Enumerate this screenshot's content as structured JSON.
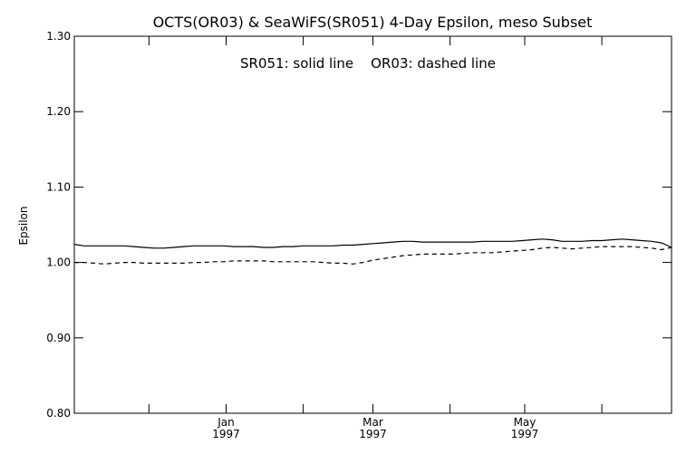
{
  "chart_data": {
    "type": "line",
    "title": "OCTS(OR03) & SeaWiFS(SR051) 4-Day Epsilon, meso Subset",
    "annotation": "SR051: solid line    OR03: dashed line",
    "xlabel": "",
    "ylabel": "Epsilon",
    "xlim": [
      "1996-11-01",
      "1997-06-29"
    ],
    "ylim": [
      0.8,
      1.3
    ],
    "y_ticks": [
      {
        "value": 0.8,
        "label": "0.80"
      },
      {
        "value": 0.9,
        "label": "0.90"
      },
      {
        "value": 1.0,
        "label": "1.00"
      },
      {
        "value": 1.1,
        "label": "1.10"
      },
      {
        "value": 1.2,
        "label": "1.20"
      },
      {
        "value": 1.3,
        "label": "1.30"
      }
    ],
    "x_ticks": [
      {
        "date": "1996-12-01",
        "label": ""
      },
      {
        "date": "1997-01-01",
        "label": "Jan",
        "year": "1997"
      },
      {
        "date": "1997-02-01",
        "label": ""
      },
      {
        "date": "1997-03-01",
        "label": "Mar",
        "year": "1997"
      },
      {
        "date": "1997-04-01",
        "label": ""
      },
      {
        "date": "1997-05-01",
        "label": "May",
        "year": "1997"
      },
      {
        "date": "1997-06-01",
        "label": ""
      }
    ],
    "grid": false,
    "legend": "none",
    "series": [
      {
        "name": "SR051",
        "style": "solid",
        "color": "#000000",
        "x": [
          "1996-11-01",
          "1996-11-05",
          "1996-11-09",
          "1996-11-13",
          "1996-11-17",
          "1996-11-21",
          "1996-11-25",
          "1996-11-29",
          "1996-12-03",
          "1996-12-07",
          "1996-12-11",
          "1996-12-15",
          "1996-12-19",
          "1996-12-23",
          "1996-12-27",
          "1996-12-31",
          "1997-01-04",
          "1997-01-08",
          "1997-01-12",
          "1997-01-16",
          "1997-01-20",
          "1997-01-24",
          "1997-01-28",
          "1997-02-01",
          "1997-02-05",
          "1997-02-09",
          "1997-02-13",
          "1997-02-17",
          "1997-02-21",
          "1997-02-25",
          "1997-03-01",
          "1997-03-05",
          "1997-03-09",
          "1997-03-13",
          "1997-03-17",
          "1997-03-21",
          "1997-03-25",
          "1997-03-29",
          "1997-04-02",
          "1997-04-06",
          "1997-04-10",
          "1997-04-14",
          "1997-04-18",
          "1997-04-22",
          "1997-04-26",
          "1997-04-30",
          "1997-05-04",
          "1997-05-08",
          "1997-05-12",
          "1997-05-16",
          "1997-05-20",
          "1997-05-24",
          "1997-05-28",
          "1997-06-01",
          "1997-06-05",
          "1997-06-09",
          "1997-06-13",
          "1997-06-17",
          "1997-06-21",
          "1997-06-25",
          "1997-06-29"
        ],
        "values": [
          1.024,
          1.022,
          1.022,
          1.022,
          1.022,
          1.022,
          1.021,
          1.02,
          1.019,
          1.019,
          1.02,
          1.021,
          1.022,
          1.022,
          1.022,
          1.022,
          1.021,
          1.021,
          1.021,
          1.02,
          1.02,
          1.021,
          1.021,
          1.022,
          1.022,
          1.022,
          1.022,
          1.023,
          1.023,
          1.024,
          1.025,
          1.026,
          1.027,
          1.028,
          1.028,
          1.027,
          1.027,
          1.027,
          1.027,
          1.027,
          1.027,
          1.028,
          1.028,
          1.028,
          1.028,
          1.029,
          1.03,
          1.031,
          1.03,
          1.028,
          1.028,
          1.028,
          1.029,
          1.029,
          1.03,
          1.031,
          1.03,
          1.029,
          1.028,
          1.026,
          1.02
        ]
      },
      {
        "name": "OR03",
        "style": "dashed",
        "color": "#000000",
        "x": [
          "1996-11-01",
          "1996-11-05",
          "1996-11-09",
          "1996-11-13",
          "1996-11-17",
          "1996-11-21",
          "1996-11-25",
          "1996-11-29",
          "1996-12-03",
          "1996-12-07",
          "1996-12-11",
          "1996-12-15",
          "1996-12-19",
          "1996-12-23",
          "1996-12-27",
          "1996-12-31",
          "1997-01-04",
          "1997-01-08",
          "1997-01-12",
          "1997-01-16",
          "1997-01-20",
          "1997-01-24",
          "1997-01-28",
          "1997-02-01",
          "1997-02-05",
          "1997-02-09",
          "1997-02-13",
          "1997-02-17",
          "1997-02-21",
          "1997-02-25",
          "1997-03-01",
          "1997-03-05",
          "1997-03-09",
          "1997-03-13",
          "1997-03-17",
          "1997-03-21",
          "1997-03-25",
          "1997-03-29",
          "1997-04-02",
          "1997-04-06",
          "1997-04-10",
          "1997-04-14",
          "1997-04-18",
          "1997-04-22",
          "1997-04-26",
          "1997-04-30",
          "1997-05-04",
          "1997-05-08",
          "1997-05-12",
          "1997-05-16",
          "1997-05-20",
          "1997-05-24",
          "1997-05-28",
          "1997-06-01",
          "1997-06-05",
          "1997-06-09",
          "1997-06-13",
          "1997-06-17",
          "1997-06-21",
          "1997-06-25",
          "1997-06-29"
        ],
        "values": [
          1.0,
          1.0,
          0.999,
          0.998,
          0.999,
          1.0,
          1.0,
          0.999,
          0.999,
          0.999,
          0.999,
          0.999,
          1.0,
          1.0,
          1.001,
          1.001,
          1.002,
          1.002,
          1.002,
          1.002,
          1.001,
          1.001,
          1.001,
          1.001,
          1.001,
          1.0,
          0.999,
          0.999,
          0.998,
          1.0,
          1.003,
          1.005,
          1.007,
          1.009,
          1.01,
          1.011,
          1.011,
          1.011,
          1.011,
          1.012,
          1.013,
          1.013,
          1.013,
          1.014,
          1.015,
          1.016,
          1.017,
          1.019,
          1.02,
          1.019,
          1.018,
          1.019,
          1.02,
          1.021,
          1.021,
          1.021,
          1.021,
          1.02,
          1.019,
          1.017,
          1.02
        ]
      }
    ]
  }
}
